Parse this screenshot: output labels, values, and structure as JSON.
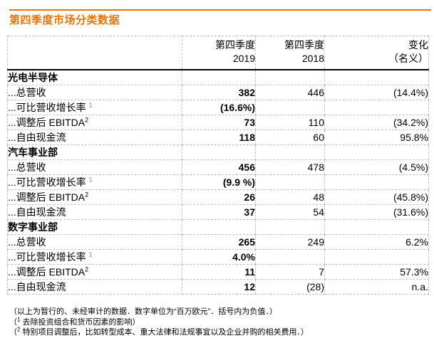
{
  "page": {
    "title": "第四季度市场分类数据"
  },
  "colors": {
    "accent_orange": "#EE7203",
    "footnote_ref_blue": "#3E9FD4",
    "grid_gray": "#c3c3c3"
  },
  "table": {
    "header": {
      "q4_2019": {
        "line1": "第四季度",
        "line2": "2019"
      },
      "q4_2018": {
        "line1": "第四季度",
        "line2": "2018"
      },
      "change": {
        "line1": "变化",
        "line2": "（名义）"
      }
    },
    "sections": [
      {
        "name": "光电半导体",
        "rows": [
          {
            "label": "...总营收",
            "sup": "",
            "q4_2019": "382",
            "q4_2018": "446",
            "change": "(14.4%)"
          },
          {
            "label": "...可比营收增长率 ",
            "sup": "1",
            "q4_2019": "(16.6%)",
            "q4_2018": "",
            "change": ""
          },
          {
            "label": "...调整后 EBITDA",
            "sup": "2",
            "q4_2019": "73",
            "q4_2018": "110",
            "change": "(34.2%)"
          },
          {
            "label": "...自由现金流",
            "sup": "",
            "q4_2019": "118",
            "q4_2018": "60",
            "change": "95.8%"
          }
        ]
      },
      {
        "name": "汽车事业部",
        "rows": [
          {
            "label": "...总营收",
            "sup": "",
            "q4_2019": "456",
            "q4_2018": "478",
            "change": "(4.5%)"
          },
          {
            "label": "...可比营收增长率 ",
            "sup": "1",
            "q4_2019": "(9.9 %)",
            "q4_2018": "",
            "change": ""
          },
          {
            "label": "...调整后 EBITDA",
            "sup": "2",
            "q4_2019": "26",
            "q4_2018": "48",
            "change": "(45.8%)"
          },
          {
            "label": "...自由现金流",
            "sup": "",
            "q4_2019": "37",
            "q4_2018": "54",
            "change": "(31.6%)"
          }
        ]
      },
      {
        "name": "数字事业部",
        "rows": [
          {
            "label": "...总营收",
            "sup": "",
            "q4_2019": "265",
            "q4_2018": "249",
            "change": "6.2%"
          },
          {
            "label": "...可比营收增长率 ",
            "sup": "1",
            "q4_2019": "4.0%",
            "q4_2018": "",
            "change": ""
          },
          {
            "label": "...调整后 EBITDA",
            "sup": "2",
            "q4_2019": "11",
            "q4_2018": "7",
            "change": "57.3%"
          },
          {
            "label": "...自由现金流",
            "sup": "",
            "q4_2019": "12",
            "q4_2018": "(28)",
            "change": "n.a."
          }
        ]
      }
    ]
  },
  "footnotes": [
    {
      "pre": "（以上为暂行的、未经审计的数据．数字单位为“百万欧元”．括号内为负值．）",
      "sup": "",
      "rest": ""
    },
    {
      "pre": "（",
      "sup": "1",
      "rest": " 去除投资组合和货币因素的影响）"
    },
    {
      "pre": "（",
      "sup": "2",
      "rest": " 特别项目调整后，比如转型成本、重大法律和法规事宜以及企业并购的相关费用．）"
    }
  ]
}
